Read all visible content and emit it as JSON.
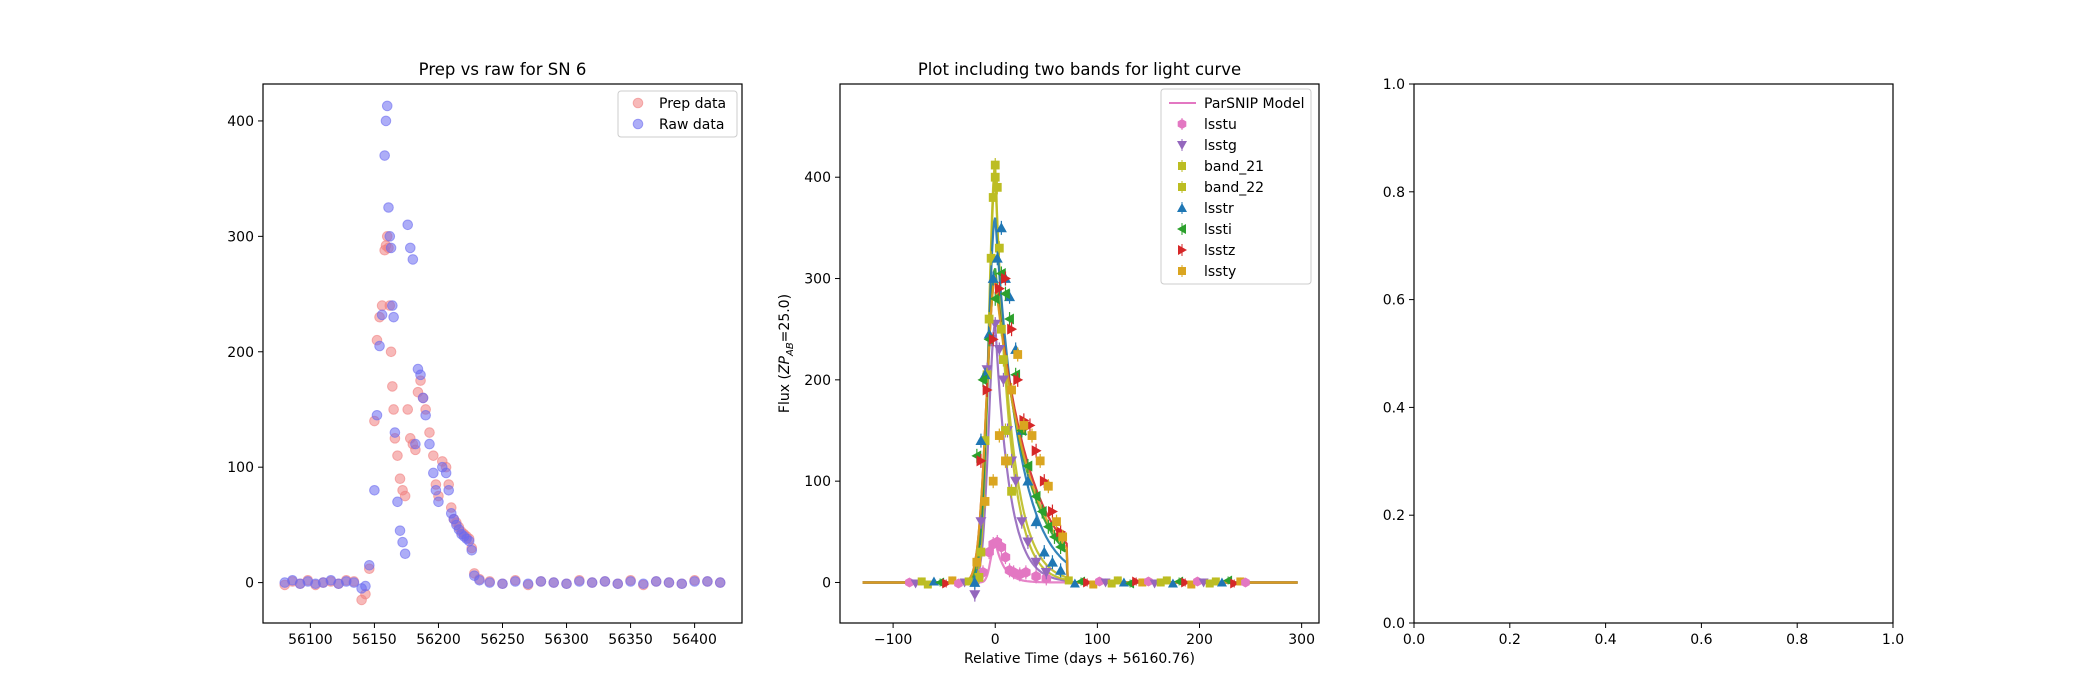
{
  "chart_data": [
    {
      "type": "scatter",
      "title": "Prep vs raw for SN 6",
      "xlabel": "",
      "ylabel": "",
      "xlim": [
        56063,
        56437
      ],
      "ylim": [
        -35,
        432
      ],
      "xticks": [
        56100,
        56150,
        56200,
        56250,
        56300,
        56350,
        56400
      ],
      "yticks": [
        0,
        100,
        200,
        300,
        400
      ],
      "grid": false,
      "legend_position": "top-right",
      "series": [
        {
          "name": "Prep data",
          "color": "#f08080",
          "x": [
            56080,
            56086,
            56092,
            56098,
            56104,
            56110,
            56116,
            56122,
            56128,
            56134,
            56140,
            56143,
            56146,
            56150,
            56152,
            56154,
            56156,
            56158,
            56159,
            56160,
            56161,
            56162,
            56163,
            56164,
            56165,
            56166,
            56168,
            56170,
            56172,
            56174,
            56176,
            56178,
            56180,
            56182,
            56184,
            56186,
            56188,
            56190,
            56193,
            56196,
            56198,
            56200,
            56203,
            56206,
            56208,
            56210,
            56212,
            56214,
            56216,
            56218,
            56220,
            56222,
            56224,
            56226,
            56228,
            56232,
            56240,
            56250,
            56260,
            56270,
            56280,
            56290,
            56300,
            56310,
            56320,
            56330,
            56340,
            56350,
            56360,
            56370,
            56380,
            56390,
            56400,
            56410,
            56420
          ],
          "y": [
            -2,
            1,
            -1,
            2,
            -2,
            0,
            1,
            -1,
            2,
            1,
            -15,
            -10,
            12,
            140,
            210,
            230,
            240,
            288,
            292,
            300,
            290,
            240,
            200,
            170,
            150,
            125,
            110,
            90,
            80,
            75,
            150,
            125,
            120,
            115,
            165,
            175,
            160,
            150,
            130,
            110,
            85,
            75,
            105,
            100,
            85,
            65,
            55,
            52,
            48,
            44,
            42,
            40,
            38,
            30,
            8,
            3,
            1,
            -1,
            2,
            -2,
            1,
            0,
            -1,
            2,
            0,
            1,
            -1,
            2,
            -2,
            1,
            0,
            -1,
            2,
            1,
            0
          ]
        },
        {
          "name": "Raw data",
          "color": "#6a6af0",
          "x": [
            56080,
            56086,
            56092,
            56098,
            56104,
            56110,
            56116,
            56122,
            56128,
            56134,
            56140,
            56143,
            56146,
            56150,
            56152,
            56154,
            56156,
            56158,
            56159,
            56160,
            56161,
            56162,
            56163,
            56164,
            56165,
            56166,
            56168,
            56170,
            56172,
            56174,
            56176,
            56178,
            56180,
            56182,
            56184,
            56186,
            56188,
            56190,
            56193,
            56196,
            56198,
            56200,
            56203,
            56206,
            56208,
            56210,
            56212,
            56214,
            56216,
            56218,
            56220,
            56222,
            56224,
            56226,
            56228,
            56232,
            56240,
            56250,
            56260,
            56270,
            56280,
            56290,
            56300,
            56310,
            56320,
            56330,
            56340,
            56350,
            56360,
            56370,
            56380,
            56390,
            56400,
            56410,
            56420
          ],
          "y": [
            0,
            2,
            -1,
            1,
            -1,
            0,
            2,
            -1,
            1,
            0,
            -5,
            -3,
            15,
            80,
            145,
            205,
            232,
            370,
            400,
            413,
            325,
            300,
            290,
            240,
            230,
            130,
            70,
            45,
            35,
            25,
            310,
            290,
            280,
            120,
            185,
            180,
            160,
            145,
            120,
            95,
            80,
            70,
            100,
            95,
            80,
            60,
            55,
            50,
            46,
            42,
            40,
            38,
            36,
            28,
            6,
            2,
            0,
            -1,
            1,
            -1,
            1,
            0,
            -1,
            1,
            0,
            1,
            -1,
            1,
            -1,
            1,
            0,
            -1,
            1,
            1,
            0
          ]
        }
      ]
    },
    {
      "type": "line",
      "title": "Plot including two bands for light curve",
      "xlabel": "Relative Time (days + 56160.76)",
      "ylabel": "Flux (ZP_AB=25.0)",
      "ylabel_main": "Flux (",
      "ylabel_zp": "ZP",
      "ylabel_sub": "AB",
      "ylabel_tail": "=25.0)",
      "xlim": [
        -152,
        317
      ],
      "ylim": [
        -40,
        492
      ],
      "xticks": [
        -100,
        0,
        100,
        200,
        300
      ],
      "yticks": [
        0,
        100,
        200,
        300,
        400
      ],
      "grid": false,
      "legend_position": "top-right",
      "model_label": "ParSNIP Model",
      "series": [
        {
          "name": "lsstu",
          "color": "#e377c2",
          "marker": "hexagon",
          "peak": 40,
          "rise": 6,
          "fall": 9,
          "x": [
            -12,
            -6,
            -2,
            2,
            6,
            10,
            14,
            18,
            24,
            30,
            40,
            50
          ],
          "y": [
            10,
            30,
            38,
            40,
            35,
            25,
            12,
            10,
            8,
            10,
            6,
            4
          ]
        },
        {
          "name": "lsstg",
          "color": "#9467bd",
          "marker": "triangle-down",
          "peak": 255,
          "rise": 9,
          "fall": 14,
          "x": [
            -20,
            -14,
            -8,
            -4,
            0,
            4,
            8,
            12,
            16,
            20,
            26,
            32,
            40,
            50
          ],
          "y": [
            -12,
            60,
            210,
            240,
            255,
            230,
            200,
            150,
            120,
            100,
            60,
            40,
            20,
            10
          ]
        },
        {
          "name": "band_21",
          "color": "#bcbd22",
          "marker": "square",
          "peak": 412,
          "rise": 9,
          "fall": 14,
          "x": [
            -16,
            -10,
            -6,
            -2,
            0,
            2,
            6,
            10,
            16
          ],
          "y": [
            5,
            140,
            260,
            380,
            412,
            390,
            250,
            150,
            90
          ]
        },
        {
          "name": "band_22",
          "color": "#bcbd22",
          "marker": "square",
          "peak": 400,
          "rise": 9,
          "fall": 16,
          "x": [
            -14,
            -8,
            -4,
            0,
            4,
            8,
            12
          ],
          "y": [
            30,
            205,
            320,
            400,
            330,
            220,
            120
          ]
        },
        {
          "name": "lsstr",
          "color": "#1f77b4",
          "marker": "triangle-up",
          "peak": 360,
          "rise": 10,
          "fall": 24,
          "x": [
            -20,
            -14,
            -10,
            -6,
            -2,
            2,
            6,
            10,
            14,
            20,
            26,
            32,
            40,
            48,
            56,
            64
          ],
          "y": [
            0,
            140,
            205,
            245,
            300,
            320,
            350,
            300,
            282,
            230,
            150,
            100,
            60,
            30,
            20,
            12
          ]
        },
        {
          "name": "lssti",
          "color": "#2ca02c",
          "marker": "triangle-left",
          "peak": 310,
          "rise": 11,
          "fall": 30,
          "x": [
            -18,
            -12,
            -6,
            0,
            6,
            10,
            14,
            20,
            26,
            32,
            40,
            46,
            52,
            58,
            64
          ],
          "y": [
            125,
            200,
            240,
            280,
            305,
            285,
            260,
            205,
            150,
            115,
            85,
            70,
            55,
            45,
            35
          ]
        },
        {
          "name": "lsstz",
          "color": "#d62728",
          "marker": "triangle-right",
          "peak": 300,
          "rise": 12,
          "fall": 34,
          "x": [
            -14,
            -8,
            -2,
            4,
            10,
            16,
            22,
            28,
            34,
            40,
            48,
            56,
            64
          ],
          "y": [
            120,
            190,
            240,
            290,
            300,
            250,
            200,
            160,
            155,
            130,
            100,
            70,
            50
          ]
        },
        {
          "name": "lssty",
          "color": "#daa520",
          "marker": "square",
          "peak": 300,
          "rise": 12,
          "fall": 32,
          "x": [
            -18,
            -10,
            -2,
            4,
            10,
            16,
            22,
            28,
            36,
            44,
            52,
            60,
            66
          ],
          "y": [
            20,
            80,
            100,
            145,
            120,
            190,
            225,
            155,
            145,
            120,
            95,
            60,
            45
          ]
        }
      ],
      "flat_points": {
        "x": [
          -84,
          -78,
          -72,
          -66,
          -60,
          -54,
          -48,
          -42,
          -36,
          -30,
          -26,
          72,
          78,
          84,
          90,
          96,
          102,
          108,
          114,
          120,
          126,
          132,
          138,
          144,
          150,
          156,
          162,
          168,
          174,
          180,
          186,
          192,
          198,
          204,
          210,
          216,
          222,
          228,
          234,
          240,
          245
        ],
        "y": [
          0,
          -1,
          1,
          -2,
          1,
          0,
          -1,
          2,
          -1,
          0,
          1,
          2,
          -1,
          1,
          0,
          -2,
          1,
          0,
          -1,
          2,
          0,
          -1,
          1,
          0,
          1,
          -1,
          0,
          2,
          -1,
          1,
          0,
          -2,
          1,
          0,
          -1,
          1,
          0,
          2,
          -1,
          1,
          0
        ]
      }
    },
    {
      "type": "scatter",
      "title": "",
      "xlabel": "",
      "ylabel": "",
      "xlim": [
        0,
        1
      ],
      "ylim": [
        0,
        1
      ],
      "xticks": [
        "0.0",
        "0.2",
        "0.4",
        "0.6",
        "0.8",
        "1.0"
      ],
      "yticks": [
        "0.0",
        "0.2",
        "0.4",
        "0.6",
        "0.8",
        "1.0"
      ],
      "grid": false,
      "series": []
    }
  ]
}
